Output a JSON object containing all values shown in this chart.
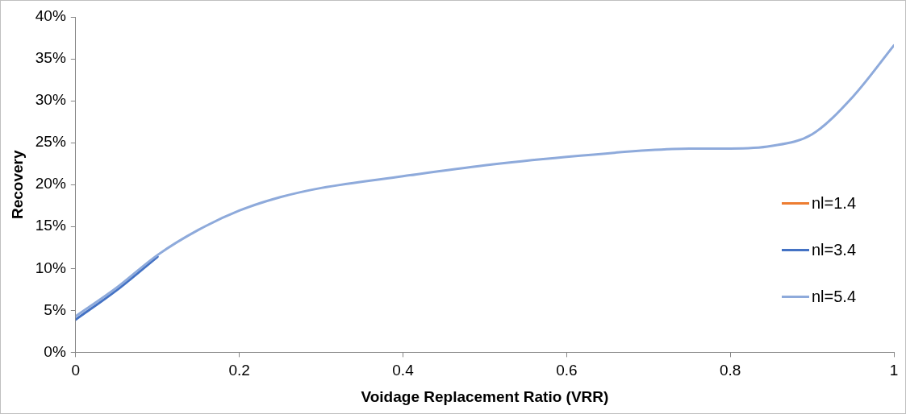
{
  "chart_data": {
    "type": "line",
    "xlabel": "Voidage Replacement Ratio (VRR)",
    "ylabel": "Recovery",
    "x": [
      0,
      0.05,
      0.1,
      0.15,
      0.2,
      0.25,
      0.3,
      0.4,
      0.5,
      0.6,
      0.7,
      0.75,
      0.8,
      0.85,
      0.9,
      0.95,
      1
    ],
    "xlim": [
      0,
      1
    ],
    "xticks": [
      0,
      0.2,
      0.4,
      0.6,
      0.8,
      1
    ],
    "ylim": [
      0,
      40
    ],
    "yticks": [
      {
        "value": 0,
        "label": "0%"
      },
      {
        "value": 5,
        "label": "5%"
      },
      {
        "value": 10,
        "label": "10%"
      },
      {
        "value": 15,
        "label": "15%"
      },
      {
        "value": 20,
        "label": "20%"
      },
      {
        "value": 25,
        "label": "25%"
      },
      {
        "value": 30,
        "label": "30%"
      },
      {
        "value": 35,
        "label": "35%"
      },
      {
        "value": 40,
        "label": "40%"
      }
    ],
    "series": [
      {
        "name": "nl=1.4",
        "color": "#ed7d31",
        "values": [
          null,
          null,
          null,
          null,
          null,
          null,
          null,
          null,
          null,
          null,
          null,
          null,
          null,
          null,
          null,
          null,
          null
        ]
      },
      {
        "name": "nl=3.4",
        "color": "#4472c4",
        "values": [
          3.9,
          7.4,
          11.4,
          null,
          null,
          null,
          null,
          null,
          null,
          null,
          null,
          null,
          null,
          null,
          null,
          null,
          null
        ]
      },
      {
        "name": "nl=5.4",
        "color": "#8eaadb",
        "values": [
          4.3,
          7.7,
          11.6,
          14.6,
          16.9,
          18.5,
          19.6,
          21.0,
          22.3,
          23.3,
          24.1,
          24.3,
          24.3,
          24.6,
          26.0,
          30.5,
          36.6
        ]
      }
    ],
    "legend": "right",
    "grid": false,
    "marker": "none",
    "line_style": "solid"
  }
}
